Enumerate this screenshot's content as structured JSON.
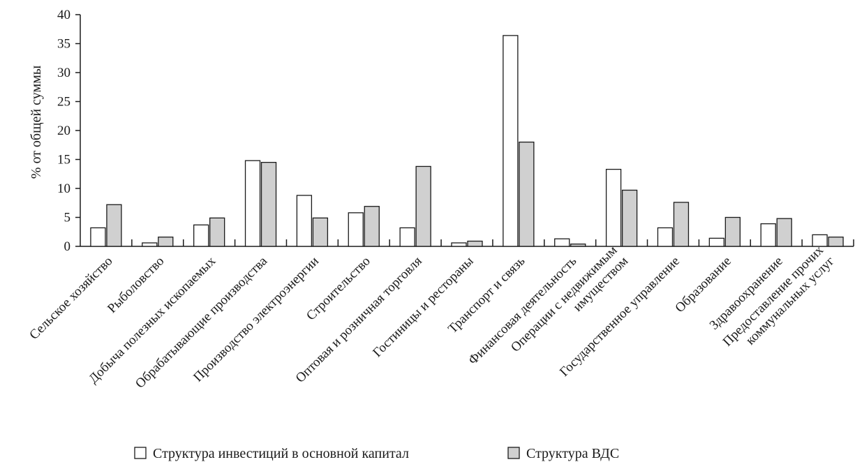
{
  "chart_data": {
    "type": "bar",
    "title": "",
    "xlabel": "",
    "ylabel": "% от общей суммы",
    "ylim": [
      0,
      40
    ],
    "yticks": [
      0,
      5,
      10,
      15,
      20,
      25,
      30,
      35,
      40
    ],
    "grid": false,
    "legend_position": "bottom",
    "categories": [
      [
        "Сельское хозяйство"
      ],
      [
        "Рыболовство"
      ],
      [
        "Добыча полезных ископаемых"
      ],
      [
        "Обрабатывающие производства"
      ],
      [
        "Производство электроэнергии"
      ],
      [
        "Строительство"
      ],
      [
        "Оптовая и розничная торговля"
      ],
      [
        "Гостиницы и рестораны"
      ],
      [
        "Транспорт и связь"
      ],
      [
        "Финансовая деятельность"
      ],
      [
        "Операции с недвижимым",
        "имуществом"
      ],
      [
        "Государственное управление"
      ],
      [
        "Образование"
      ],
      [
        "Здравоохранение"
      ],
      [
        "Предоставление прочих",
        "коммунальных услуг"
      ]
    ],
    "series": [
      {
        "name": "Структура инвестиций в основной капитал",
        "color": "#ffffff",
        "values": [
          3.2,
          0.6,
          3.7,
          14.8,
          8.8,
          5.8,
          3.2,
          0.6,
          36.4,
          1.3,
          13.3,
          3.2,
          1.4,
          3.9,
          2.0
        ]
      },
      {
        "name": "Структура ВДС",
        "color": "#d0d0d0",
        "values": [
          7.2,
          1.6,
          4.9,
          14.5,
          4.9,
          6.9,
          13.8,
          0.9,
          18.0,
          0.4,
          9.7,
          7.6,
          5.0,
          4.8,
          1.6
        ]
      }
    ]
  }
}
